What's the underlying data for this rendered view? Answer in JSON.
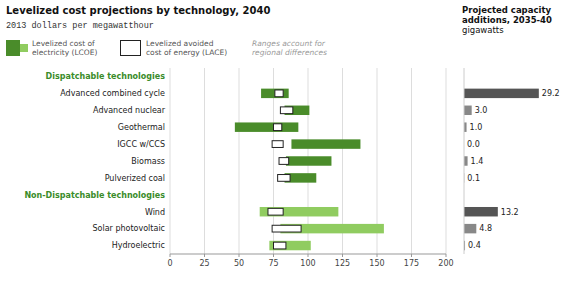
{
  "chart_data": [
    {
      "type": "range_bar",
      "title": "Levelized cost projections by technology, 2040",
      "subtitle": "2013 dollars per megawatthour",
      "orientation": "horizontal",
      "categories": [
        "Advanced combined cycle",
        "Advanced nuclear",
        "Geothermal",
        "IGCC w/CCS",
        "Biomass",
        "Pulverized coal",
        "Wind",
        "Solar photovoltaic",
        "Hydroelectric"
      ],
      "series": [
        {
          "name": "Levelized cost of\nelectricity (LCOE)",
          "low": [
            66,
            83,
            47,
            88,
            84,
            83,
            65,
            80,
            72
          ],
          "high": [
            86,
            101,
            93,
            138,
            117,
            106,
            122,
            155,
            102
          ],
          "colors": [
            "#4a8c2a",
            "#4a8c2a",
            "#4a8c2a",
            "#4a8c2a",
            "#4a8c2a",
            "#4a8c2a",
            "#90cc60",
            "#90cc60",
            "#90cc60"
          ]
        },
        {
          "name": "Levelized avoided\ncost of energy (LACE)",
          "low": [
            76,
            80,
            75,
            74,
            79,
            78,
            71,
            74,
            75
          ],
          "high": [
            82,
            89,
            81,
            82,
            86,
            87,
            82,
            95,
            84
          ],
          "color": "#222222"
        }
      ],
      "annotations": [
        {
          "text": "Dispatchable technologies",
          "category": "Advanced combined cycle",
          "color": "#3a8c2a"
        },
        {
          "text": "Non-Dispatchable technologies",
          "category": "Wind",
          "color": "#3a8c2a"
        }
      ],
      "note": "Ranges account for\nregional differences",
      "xlim": [
        0,
        200
      ],
      "xticks": [
        0,
        25,
        50,
        75,
        100,
        125,
        150,
        175,
        200
      ],
      "grid": true,
      "legend": "top"
    },
    {
      "type": "bar",
      "title": "Projected capacity\nadditions, 2035-40",
      "subtitle": "gigawatts",
      "orientation": "horizontal",
      "values": [
        29.2,
        3.0,
        1.0,
        0.0,
        1.4,
        0.1,
        13.2,
        4.8,
        0.4
      ],
      "value_labels": [
        "29.2",
        "3.0",
        "1.0",
        "0.0",
        "1.4",
        "0.1",
        "13.2",
        "4.8",
        "0.4"
      ],
      "colors": [
        "#555555",
        "#888888",
        "#888888",
        "#888888",
        "#888888",
        "#888888",
        "#555555",
        "#888888",
        "#888888"
      ],
      "xlim": [
        0,
        32
      ],
      "data_labels": true,
      "tick_labels": false
    }
  ]
}
